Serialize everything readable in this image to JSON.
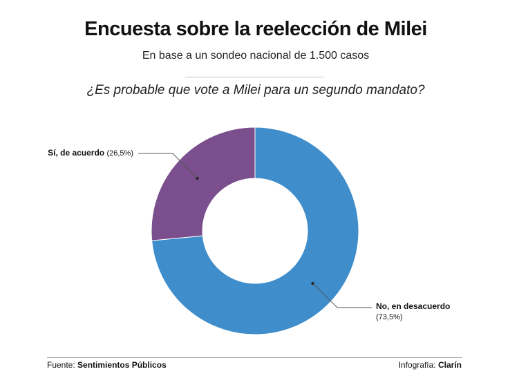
{
  "header": {
    "title": "Encuesta sobre la reelección de Milei",
    "subtitle": "En base a un sondeo nacional de 1.500 casos",
    "question": "¿Es probable que vote a Milei para un segundo mandato?"
  },
  "footer": {
    "source_label": "Fuente:",
    "source": "Sentimientos Públicos",
    "credit_label": "Infografía:",
    "credit": "Clarín"
  },
  "chart_data": {
    "type": "pie",
    "variant": "donut",
    "title": "¿Es probable que vote a Milei para un segundo mandato?",
    "categories": [
      "No, en desacuerdo",
      "Sí, de acuerdo"
    ],
    "values": [
      73.5,
      26.5
    ],
    "value_labels": [
      "(73,5%)",
      "(26,5%)"
    ],
    "colors": [
      "#3f8dca",
      "#7b4f8e"
    ],
    "legend": "callout labels"
  }
}
